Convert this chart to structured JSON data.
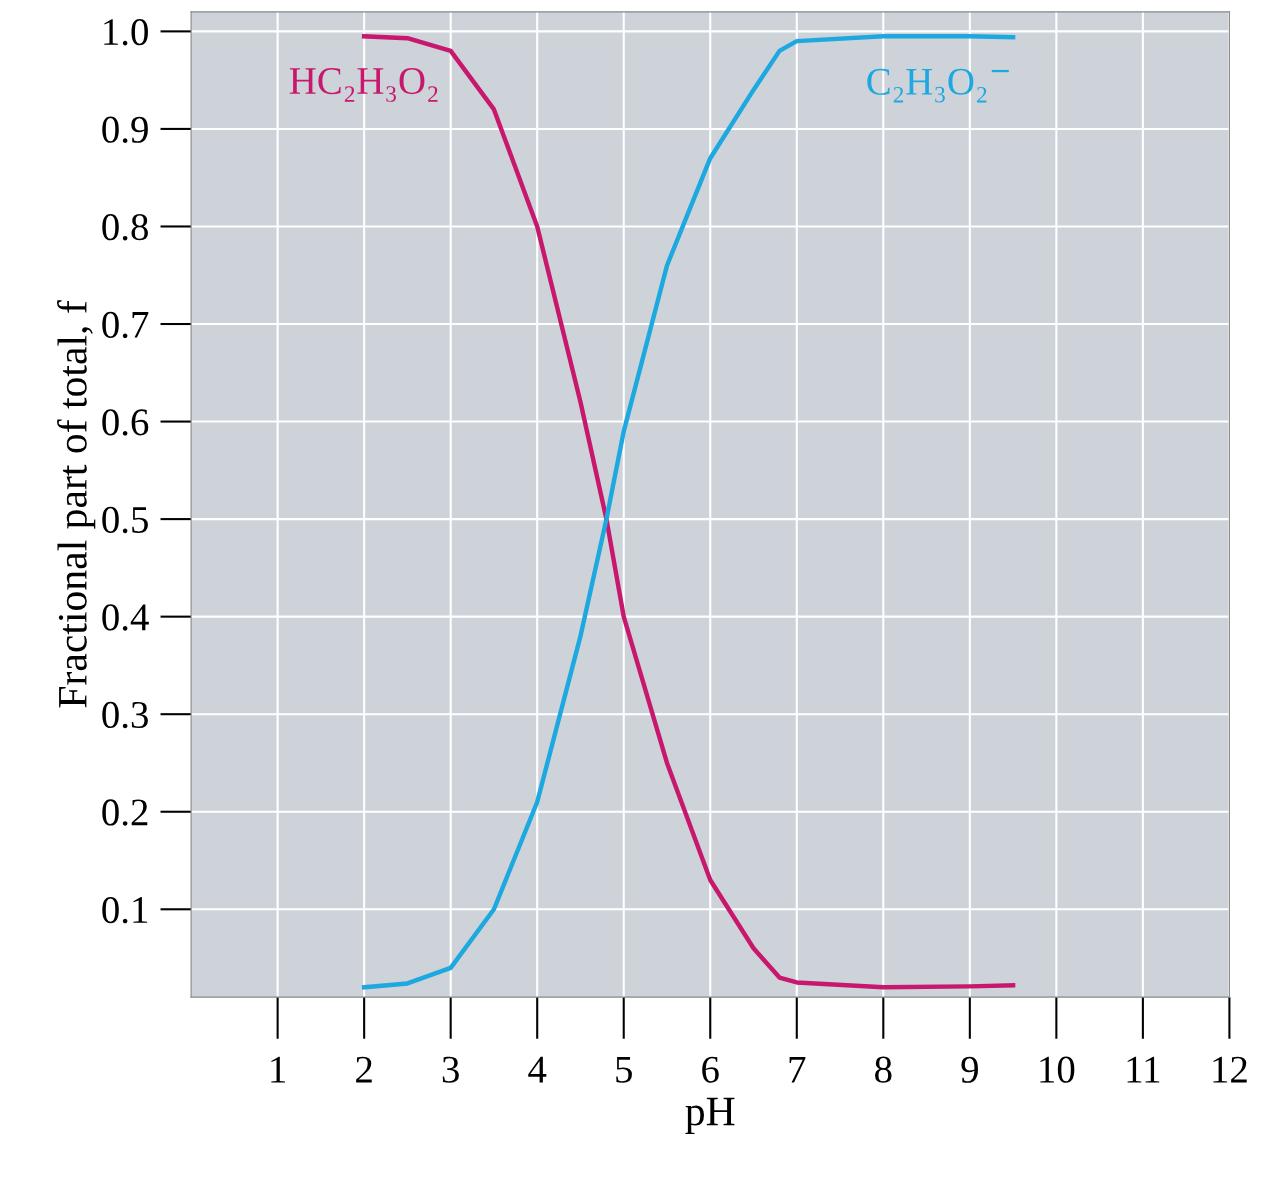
{
  "chart_data": {
    "type": "line",
    "xlabel": "pH",
    "ylabel": "Fractional part of total, f",
    "xlim": [
      0,
      12
    ],
    "ylim": [
      0.01,
      1.02
    ],
    "xticks": [
      1,
      2,
      3,
      4,
      5,
      6,
      7,
      8,
      9,
      10,
      11,
      12
    ],
    "yticks": [
      0.1,
      0.2,
      0.3,
      0.4,
      0.5,
      0.6,
      0.7,
      0.8,
      0.9,
      {
        "value": 1.0,
        "label": "1.0"
      }
    ],
    "grid": true,
    "legend": false,
    "marker": "none",
    "line_style": "solid",
    "series": [
      {
        "name": "HC₂H₃O₂",
        "color": "#c8186e",
        "x": [
          2,
          2.5,
          3,
          3.5,
          4,
          4.5,
          4.8,
          5,
          5.5,
          6,
          6.5,
          6.8,
          7,
          8,
          9,
          9.5
        ],
        "values": [
          0.995,
          0.993,
          0.98,
          0.92,
          0.8,
          0.62,
          0.5,
          0.4,
          0.25,
          0.13,
          0.06,
          0.03,
          0.025,
          0.02,
          0.021,
          0.022
        ]
      },
      {
        "name": "C₂H₃O₂$^{−}$",
        "color": "#1ea8e0",
        "x": [
          2,
          2.5,
          3,
          3.5,
          4,
          4.5,
          4.8,
          5,
          5.5,
          6,
          6.5,
          6.8,
          7,
          8,
          9,
          9.5
        ],
        "values": [
          0.02,
          0.024,
          0.04,
          0.1,
          0.21,
          0.38,
          0.5,
          0.59,
          0.76,
          0.87,
          0.94,
          0.98,
          0.99,
          0.995,
          0.995,
          0.994
        ]
      }
    ]
  }
}
